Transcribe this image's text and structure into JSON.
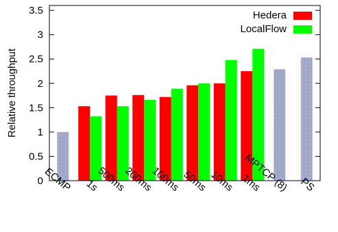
{
  "chart_data": {
    "type": "bar",
    "title": "",
    "xlabel": "",
    "ylabel": "Relative throughput",
    "ylim": [
      0,
      3.6
    ],
    "yticks": [
      "0",
      "0.5",
      "1",
      "1.5",
      "2",
      "2.5",
      "3",
      "3.5"
    ],
    "grid": false,
    "legend_position": "top-right",
    "groups": [
      {
        "label": "ECMP",
        "bars": [
          {
            "series": "baseline",
            "value": 1.0
          }
        ]
      },
      {
        "label": "1s",
        "bars": [
          {
            "series": "Hedera",
            "value": 1.53
          },
          {
            "series": "LocalFlow",
            "value": 1.32
          }
        ]
      },
      {
        "label": "500ms",
        "bars": [
          {
            "series": "Hedera",
            "value": 1.75
          },
          {
            "series": "LocalFlow",
            "value": 1.53
          }
        ]
      },
      {
        "label": "200ms",
        "bars": [
          {
            "series": "Hedera",
            "value": 1.76
          },
          {
            "series": "LocalFlow",
            "value": 1.66
          }
        ]
      },
      {
        "label": "100ms",
        "bars": [
          {
            "series": "Hedera",
            "value": 1.72
          },
          {
            "series": "LocalFlow",
            "value": 1.89
          }
        ]
      },
      {
        "label": "50ms",
        "bars": [
          {
            "series": "Hedera",
            "value": 1.96
          },
          {
            "series": "LocalFlow",
            "value": 2.0
          }
        ]
      },
      {
        "label": "10ms",
        "bars": [
          {
            "series": "Hedera",
            "value": 2.0
          },
          {
            "series": "LocalFlow",
            "value": 2.48
          }
        ]
      },
      {
        "label": "1ms",
        "bars": [
          {
            "series": "Hedera",
            "value": 2.25
          },
          {
            "series": "LocalFlow",
            "value": 2.71
          }
        ]
      },
      {
        "label": "MPTCP (8)",
        "bars": [
          {
            "series": "baseline",
            "value": 2.29
          }
        ]
      },
      {
        "label": "PS",
        "bars": [
          {
            "series": "baseline",
            "value": 2.53
          }
        ]
      }
    ],
    "series": [
      {
        "name": "Hedera",
        "color": "#ff0000"
      },
      {
        "name": "LocalFlow",
        "color": "#00ff00"
      }
    ],
    "baseline_style": {
      "color": "#3344cc",
      "pattern": "dotted"
    }
  }
}
